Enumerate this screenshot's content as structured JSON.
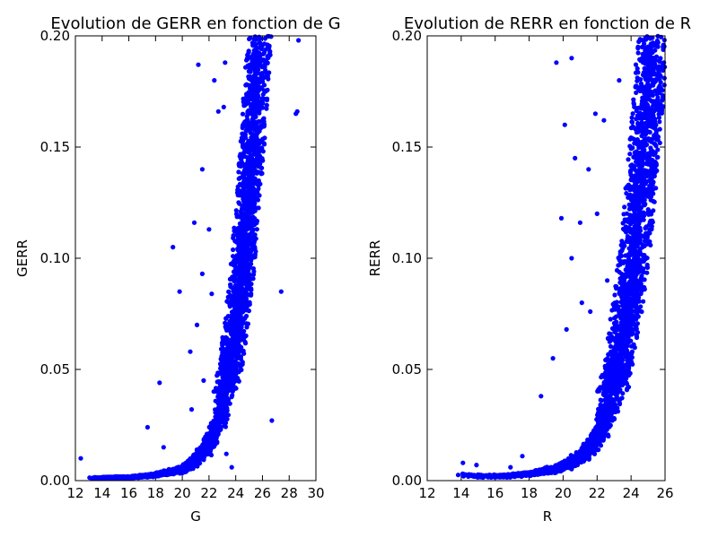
{
  "chart_data": [
    {
      "type": "scatter",
      "title": "Evolution de GERR en fonction de G",
      "xlabel": "G",
      "ylabel": "GERR",
      "xlim": [
        12,
        30
      ],
      "ylim": [
        0,
        0.2
      ],
      "xticks": [
        12,
        14,
        16,
        18,
        20,
        22,
        24,
        26,
        28,
        30
      ],
      "yticks": [
        0.0,
        0.05,
        0.1,
        0.15,
        0.2
      ],
      "xtick_labels": [
        "12",
        "14",
        "16",
        "18",
        "20",
        "22",
        "24",
        "26",
        "28",
        "30"
      ],
      "ytick_labels": [
        "0.00",
        "0.05",
        "0.10",
        "0.15",
        "0.20"
      ],
      "color": "#0000ff",
      "main_band": [
        [
          13.0,
          0.0012
        ],
        [
          16.0,
          0.0015
        ],
        [
          18.0,
          0.0025
        ],
        [
          20.0,
          0.005
        ],
        [
          21.0,
          0.009
        ],
        [
          22.0,
          0.017
        ],
        [
          22.5,
          0.024
        ],
        [
          23.0,
          0.034
        ],
        [
          23.5,
          0.048
        ],
        [
          24.0,
          0.068
        ],
        [
          24.5,
          0.095
        ],
        [
          25.0,
          0.13
        ],
        [
          25.5,
          0.175
        ],
        [
          25.8,
          0.2
        ]
      ],
      "outliers": [
        [
          12.4,
          0.01
        ],
        [
          17.4,
          0.024
        ],
        [
          18.3,
          0.044
        ],
        [
          18.6,
          0.015
        ],
        [
          19.3,
          0.105
        ],
        [
          19.8,
          0.085
        ],
        [
          20.6,
          0.058
        ],
        [
          20.7,
          0.032
        ],
        [
          20.9,
          0.116
        ],
        [
          21.1,
          0.07
        ],
        [
          21.2,
          0.187
        ],
        [
          21.5,
          0.14
        ],
        [
          21.5,
          0.093
        ],
        [
          21.6,
          0.045
        ],
        [
          22.0,
          0.113
        ],
        [
          22.2,
          0.084
        ],
        [
          22.4,
          0.18
        ],
        [
          22.7,
          0.166
        ],
        [
          23.1,
          0.168
        ],
        [
          23.2,
          0.188
        ],
        [
          23.3,
          0.012
        ],
        [
          23.7,
          0.006
        ],
        [
          26.7,
          0.027
        ],
        [
          27.4,
          0.085
        ],
        [
          28.5,
          0.165
        ],
        [
          28.6,
          0.166
        ],
        [
          28.7,
          0.198
        ]
      ]
    },
    {
      "type": "scatter",
      "title": "Evolution de RERR en fonction de R",
      "xlabel": "R",
      "ylabel": "RERR",
      "xlim": [
        12,
        26
      ],
      "ylim": [
        0,
        0.2
      ],
      "xticks": [
        12,
        14,
        16,
        18,
        20,
        22,
        24,
        26
      ],
      "yticks": [
        0.0,
        0.05,
        0.1,
        0.15,
        0.2
      ],
      "xtick_labels": [
        "12",
        "14",
        "16",
        "18",
        "20",
        "22",
        "24",
        "26"
      ],
      "ytick_labels": [
        "0.00",
        "0.05",
        "0.10",
        "0.15",
        "0.20"
      ],
      "color": "#0000ff",
      "main_band": [
        [
          13.8,
          0.003
        ],
        [
          15.0,
          0.002
        ],
        [
          16.5,
          0.002
        ],
        [
          18.0,
          0.003
        ],
        [
          19.5,
          0.005
        ],
        [
          20.5,
          0.008
        ],
        [
          21.5,
          0.014
        ],
        [
          22.0,
          0.02
        ],
        [
          22.5,
          0.03
        ],
        [
          23.0,
          0.043
        ],
        [
          23.5,
          0.063
        ],
        [
          24.0,
          0.09
        ],
        [
          24.5,
          0.125
        ],
        [
          25.0,
          0.168
        ],
        [
          25.3,
          0.2
        ]
      ],
      "outliers": [
        [
          14.1,
          0.008
        ],
        [
          14.9,
          0.007
        ],
        [
          16.9,
          0.006
        ],
        [
          17.6,
          0.011
        ],
        [
          18.7,
          0.038
        ],
        [
          19.4,
          0.055
        ],
        [
          19.6,
          0.188
        ],
        [
          19.9,
          0.118
        ],
        [
          20.1,
          0.16
        ],
        [
          20.2,
          0.068
        ],
        [
          20.5,
          0.19
        ],
        [
          20.5,
          0.1
        ],
        [
          20.7,
          0.145
        ],
        [
          21.0,
          0.116
        ],
        [
          21.1,
          0.08
        ],
        [
          21.5,
          0.14
        ],
        [
          21.6,
          0.076
        ],
        [
          21.9,
          0.165
        ],
        [
          22.0,
          0.12
        ],
        [
          22.4,
          0.162
        ],
        [
          22.6,
          0.09
        ],
        [
          23.3,
          0.18
        ]
      ]
    }
  ]
}
